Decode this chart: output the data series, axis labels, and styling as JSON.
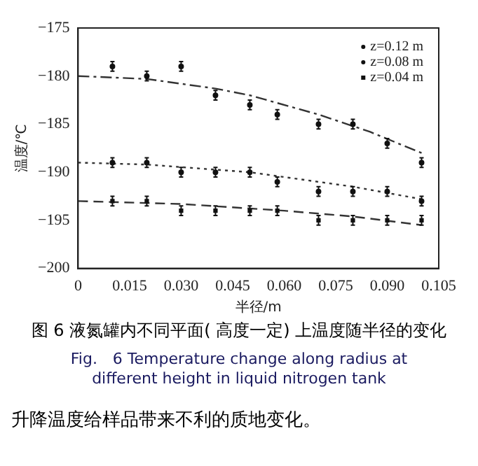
{
  "chart_data": {
    "type": "scatter",
    "xlabel": "半径/m",
    "ylabel": "温度/℃",
    "xlim": [
      0,
      0.105
    ],
    "xticks": [
      0,
      0.015,
      {
        "value": 0.03,
        "label": "0.030"
      },
      0.045,
      {
        "value": 0.06,
        "label": "0.060"
      },
      0.075,
      {
        "value": 0.09,
        "label": "0.090"
      },
      0.105
    ],
    "ylim": [
      -200,
      -175
    ],
    "yticks": [
      -200,
      -195,
      -190,
      -185,
      -180,
      -175
    ],
    "x": [
      0.01,
      0.02,
      0.03,
      0.04,
      0.05,
      0.058,
      0.07,
      0.08,
      0.09,
      0.1
    ],
    "legend": "top right",
    "grid": false,
    "series": [
      {
        "name": "z=0.12 m",
        "color": "#111111",
        "marker": "circle",
        "values": [
          -179,
          -180,
          -179,
          -182,
          -183,
          -184,
          -185,
          -185,
          -187,
          -189
        ],
        "errors": [
          0.5,
          0.5,
          0.5,
          0.5,
          0.5,
          0.5,
          0.5,
          0.5,
          0.5,
          0.5
        ]
      },
      {
        "name": "z=0.08 m",
        "color": "#111111",
        "marker": "circle",
        "values": [
          -189,
          -189,
          -190,
          -190,
          -190,
          -191,
          -192,
          -192,
          -192,
          -193
        ],
        "errors": [
          0.5,
          0.5,
          0.5,
          0.5,
          0.5,
          0.5,
          0.5,
          0.5,
          0.5,
          0.5
        ]
      },
      {
        "name": "z=0.04 m",
        "color": "#111111",
        "marker": "square",
        "values": [
          -193,
          -193,
          -194,
          -194,
          -194,
          -194,
          -195,
          -195,
          -195,
          -195
        ],
        "errors": [
          0.5,
          0.5,
          0.5,
          0.5,
          0.5,
          0.5,
          0.5,
          0.5,
          0.5,
          0.5
        ]
      },
      {
        "type": "line",
        "color": "#333333",
        "line_style": "dashdot",
        "marker": "none",
        "x": [
          0,
          0.02,
          0.04,
          0.05,
          0.07,
          0.085,
          0.1
        ],
        "values": [
          -180,
          -180.3,
          -181.3,
          -182,
          -184,
          -185.8,
          -188
        ]
      },
      {
        "type": "line",
        "color": "#333333",
        "line_style": "dotted",
        "marker": "none",
        "x": [
          0,
          0.02,
          0.05,
          0.08,
          0.1
        ],
        "values": [
          -189,
          -189.2,
          -190,
          -191.5,
          -192.8
        ]
      },
      {
        "type": "line",
        "color": "#333333",
        "line_style": "dashed",
        "marker": "none",
        "x": [
          0,
          0.03,
          0.06,
          0.08,
          0.1
        ],
        "values": [
          -193,
          -193.3,
          -194,
          -194.6,
          -195.5
        ]
      }
    ],
    "annotations": [
      "图 6 液氮罐内不同平面( 高度一定) 上温度随半径的变化",
      "Fig.　6 Temperature change along radius at different height in liquid nitrogen tank",
      "升降温度给样品带来不利的质地变化。"
    ]
  }
}
